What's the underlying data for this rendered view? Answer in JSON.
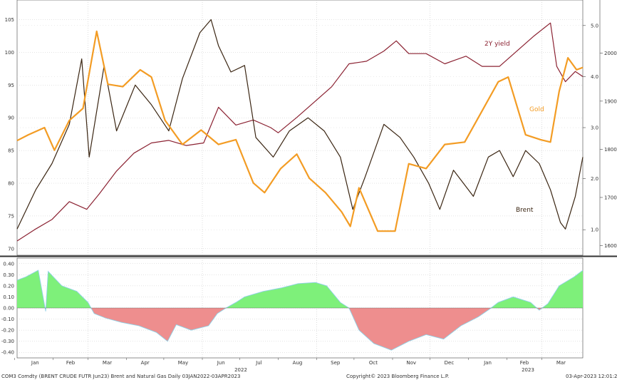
{
  "chart_data": [
    {
      "type": "line",
      "title": "",
      "x_range": [
        "2022-01-03",
        "2023-04-03"
      ],
      "left_axis": {
        "ticks": [
          "70",
          "75",
          "80",
          "85",
          "90",
          "95",
          "100",
          "105"
        ],
        "ylim": [
          69,
          108
        ]
      },
      "right_axis_yield": {
        "ticks": [
          "1.0",
          "2.0",
          "3.0",
          "4.0",
          "5.0"
        ],
        "ylim": [
          0.5,
          5.5
        ]
      },
      "right_axis_gold": {
        "ticks": [
          "1600",
          "1700",
          "1800",
          "1900",
          "2000"
        ],
        "ylim": [
          1580,
          2110
        ]
      },
      "series": [
        {
          "name": "Brent",
          "color": "#3a2512",
          "axis": "left",
          "points": [
            [
              "2022-01-03",
              73
            ],
            [
              "2022-01-18",
              79
            ],
            [
              "2022-01-31",
              83
            ],
            [
              "2022-02-14",
              89
            ],
            [
              "2022-02-24",
              99
            ],
            [
              "2022-03-02",
              84
            ],
            [
              "2022-03-14",
              98
            ],
            [
              "2022-03-24",
              88
            ],
            [
              "2022-04-08",
              95
            ],
            [
              "2022-04-21",
              92
            ],
            [
              "2022-05-05",
              88
            ],
            [
              "2022-05-16",
              96
            ],
            [
              "2022-05-30",
              103
            ],
            [
              "2022-06-08",
              105
            ],
            [
              "2022-06-14",
              101
            ],
            [
              "2022-06-24",
              97
            ],
            [
              "2022-07-05",
              98
            ],
            [
              "2022-07-14",
              87
            ],
            [
              "2022-07-28",
              84
            ],
            [
              "2022-08-10",
              88
            ],
            [
              "2022-08-25",
              90
            ],
            [
              "2022-09-07",
              88
            ],
            [
              "2022-09-20",
              84
            ],
            [
              "2022-09-30",
              76
            ],
            [
              "2022-10-10",
              81
            ],
            [
              "2022-10-25",
              89
            ],
            [
              "2022-11-07",
              87
            ],
            [
              "2022-11-18",
              84
            ],
            [
              "2022-11-30",
              80
            ],
            [
              "2022-12-09",
              76
            ],
            [
              "2022-12-20",
              82
            ],
            [
              "2023-01-05",
              78
            ],
            [
              "2023-01-17",
              84
            ],
            [
              "2023-01-26",
              85
            ],
            [
              "2023-02-06",
              81
            ],
            [
              "2023-02-16",
              85
            ],
            [
              "2023-02-27",
              83
            ],
            [
              "2023-03-08",
              79
            ],
            [
              "2023-03-16",
              74
            ],
            [
              "2023-03-20",
              73
            ],
            [
              "2023-03-28",
              78
            ],
            [
              "2023-04-03",
              84
            ]
          ]
        },
        {
          "name": "Gold",
          "color": "#f39c24",
          "axis": "right_gold",
          "points": [
            [
              "2022-01-03",
              1818
            ],
            [
              "2022-01-12",
              1830
            ],
            [
              "2022-01-25",
              1845
            ],
            [
              "2022-02-02",
              1798
            ],
            [
              "2022-02-14",
              1860
            ],
            [
              "2022-02-25",
              1885
            ],
            [
              "2022-03-08",
              2045
            ],
            [
              "2022-03-17",
              1935
            ],
            [
              "2022-03-29",
              1930
            ],
            [
              "2022-04-12",
              1965
            ],
            [
              "2022-04-21",
              1950
            ],
            [
              "2022-05-02",
              1860
            ],
            [
              "2022-05-16",
              1810
            ],
            [
              "2022-05-31",
              1840
            ],
            [
              "2022-06-14",
              1810
            ],
            [
              "2022-06-28",
              1820
            ],
            [
              "2022-07-12",
              1730
            ],
            [
              "2022-07-21",
              1710
            ],
            [
              "2022-08-03",
              1760
            ],
            [
              "2022-08-16",
              1790
            ],
            [
              "2022-08-26",
              1740
            ],
            [
              "2022-09-08",
              1710
            ],
            [
              "2022-09-21",
              1670
            ],
            [
              "2022-09-28",
              1640
            ],
            [
              "2022-10-05",
              1720
            ],
            [
              "2022-10-20",
              1630
            ],
            [
              "2022-11-03",
              1630
            ],
            [
              "2022-11-14",
              1770
            ],
            [
              "2022-11-28",
              1760
            ],
            [
              "2022-12-13",
              1810
            ],
            [
              "2022-12-29",
              1815
            ],
            [
              "2023-01-11",
              1875
            ],
            [
              "2023-01-25",
              1940
            ],
            [
              "2023-02-02",
              1950
            ],
            [
              "2023-02-16",
              1830
            ],
            [
              "2023-02-28",
              1820
            ],
            [
              "2023-03-08",
              1815
            ],
            [
              "2023-03-15",
              1920
            ],
            [
              "2023-03-22",
              1990
            ],
            [
              "2023-03-29",
              1965
            ],
            [
              "2023-04-03",
              1970
            ]
          ]
        },
        {
          "name": "2Y yield",
          "color": "#8b2232",
          "axis": "right_yield",
          "points": [
            [
              "2022-01-03",
              0.78
            ],
            [
              "2022-01-17",
              1.0
            ],
            [
              "2022-01-31",
              1.2
            ],
            [
              "2022-02-14",
              1.55
            ],
            [
              "2022-02-28",
              1.4
            ],
            [
              "2022-03-10",
              1.7
            ],
            [
              "2022-03-24",
              2.15
            ],
            [
              "2022-04-07",
              2.5
            ],
            [
              "2022-04-21",
              2.7
            ],
            [
              "2022-05-05",
              2.75
            ],
            [
              "2022-05-19",
              2.65
            ],
            [
              "2022-06-02",
              2.7
            ],
            [
              "2022-06-14",
              3.4
            ],
            [
              "2022-06-28",
              3.05
            ],
            [
              "2022-07-12",
              3.15
            ],
            [
              "2022-07-26",
              3.0
            ],
            [
              "2022-08-01",
              2.9
            ],
            [
              "2022-08-16",
              3.2
            ],
            [
              "2022-08-30",
              3.5
            ],
            [
              "2022-09-13",
              3.8
            ],
            [
              "2022-09-27",
              4.25
            ],
            [
              "2022-10-11",
              4.3
            ],
            [
              "2022-10-25",
              4.5
            ],
            [
              "2022-11-04",
              4.7
            ],
            [
              "2022-11-14",
              4.45
            ],
            [
              "2022-11-28",
              4.45
            ],
            [
              "2022-12-13",
              4.25
            ],
            [
              "2022-12-30",
              4.4
            ],
            [
              "2023-01-12",
              4.2
            ],
            [
              "2023-01-26",
              4.2
            ],
            [
              "2023-02-09",
              4.5
            ],
            [
              "2023-02-23",
              4.8
            ],
            [
              "2023-03-08",
              5.05
            ],
            [
              "2023-03-13",
              4.2
            ],
            [
              "2023-03-20",
              3.9
            ],
            [
              "2023-03-28",
              4.1
            ],
            [
              "2023-04-03",
              4.0
            ]
          ]
        }
      ],
      "annotations": [
        "2Y yield",
        "Gold",
        "Brent"
      ]
    },
    {
      "type": "area",
      "ylim": [
        -0.45,
        0.45
      ],
      "y_ticks": [
        "0.40",
        "0.30",
        "0.20",
        "0.10",
        "0.00",
        "-0.10",
        "-0.20",
        "-0.30",
        "-0.40"
      ],
      "positive_color": "#7ef07a",
      "negative_color": "#ee8e8e",
      "series": [
        {
          "points": [
            [
              "2022-01-03",
              0.25
            ],
            [
              "2022-01-10",
              0.28
            ],
            [
              "2022-01-20",
              0.34
            ],
            [
              "2022-01-26",
              -0.03
            ],
            [
              "2022-01-28",
              0.33
            ],
            [
              "2022-02-08",
              0.2
            ],
            [
              "2022-02-20",
              0.15
            ],
            [
              "2022-03-01",
              0.05
            ],
            [
              "2022-03-06",
              -0.05
            ],
            [
              "2022-03-15",
              -0.09
            ],
            [
              "2022-03-28",
              -0.13
            ],
            [
              "2022-04-11",
              -0.16
            ],
            [
              "2022-04-25",
              -0.22
            ],
            [
              "2022-05-04",
              -0.3
            ],
            [
              "2022-05-11",
              -0.15
            ],
            [
              "2022-05-23",
              -0.2
            ],
            [
              "2022-06-06",
              -0.16
            ],
            [
              "2022-06-13",
              -0.05
            ],
            [
              "2022-06-20",
              0.0
            ],
            [
              "2022-06-28",
              0.05
            ],
            [
              "2022-07-05",
              0.1
            ],
            [
              "2022-07-20",
              0.15
            ],
            [
              "2022-08-03",
              0.18
            ],
            [
              "2022-08-17",
              0.22
            ],
            [
              "2022-08-31",
              0.23
            ],
            [
              "2022-09-09",
              0.2
            ],
            [
              "2022-09-20",
              0.05
            ],
            [
              "2022-09-27",
              0.0
            ],
            [
              "2022-10-05",
              -0.2
            ],
            [
              "2022-10-17",
              -0.32
            ],
            [
              "2022-10-31",
              -0.38
            ],
            [
              "2022-11-14",
              -0.3
            ],
            [
              "2022-11-28",
              -0.24
            ],
            [
              "2022-12-12",
              -0.28
            ],
            [
              "2022-12-26",
              -0.16
            ],
            [
              "2023-01-09",
              -0.08
            ],
            [
              "2023-01-18",
              -0.01
            ],
            [
              "2023-01-25",
              0.05
            ],
            [
              "2023-02-06",
              0.1
            ],
            [
              "2023-02-20",
              0.05
            ],
            [
              "2023-02-27",
              -0.02
            ],
            [
              "2023-03-06",
              0.04
            ],
            [
              "2023-03-15",
              0.2
            ],
            [
              "2023-03-27",
              0.28
            ],
            [
              "2023-04-03",
              0.34
            ]
          ]
        }
      ],
      "x_ticks": [
        "Jan",
        "Feb",
        "Mar",
        "Apr",
        "May",
        "Jun",
        "Jul",
        "Aug",
        "Sep",
        "Oct",
        "Nov",
        "Dec",
        "Jan",
        "Feb",
        "Mar"
      ],
      "x_years": [
        "2022",
        "2023"
      ]
    }
  ],
  "footer": {
    "left": "COM3 Comdty (BRENT CRUDE FUTR  Jun23) Brent and Natural Gas  Daily 03JAN2022-03APR2023",
    "center": "Copyright© 2023 Bloomberg Finance L.P.",
    "right": "03-Apr-2023  12:01:27"
  }
}
